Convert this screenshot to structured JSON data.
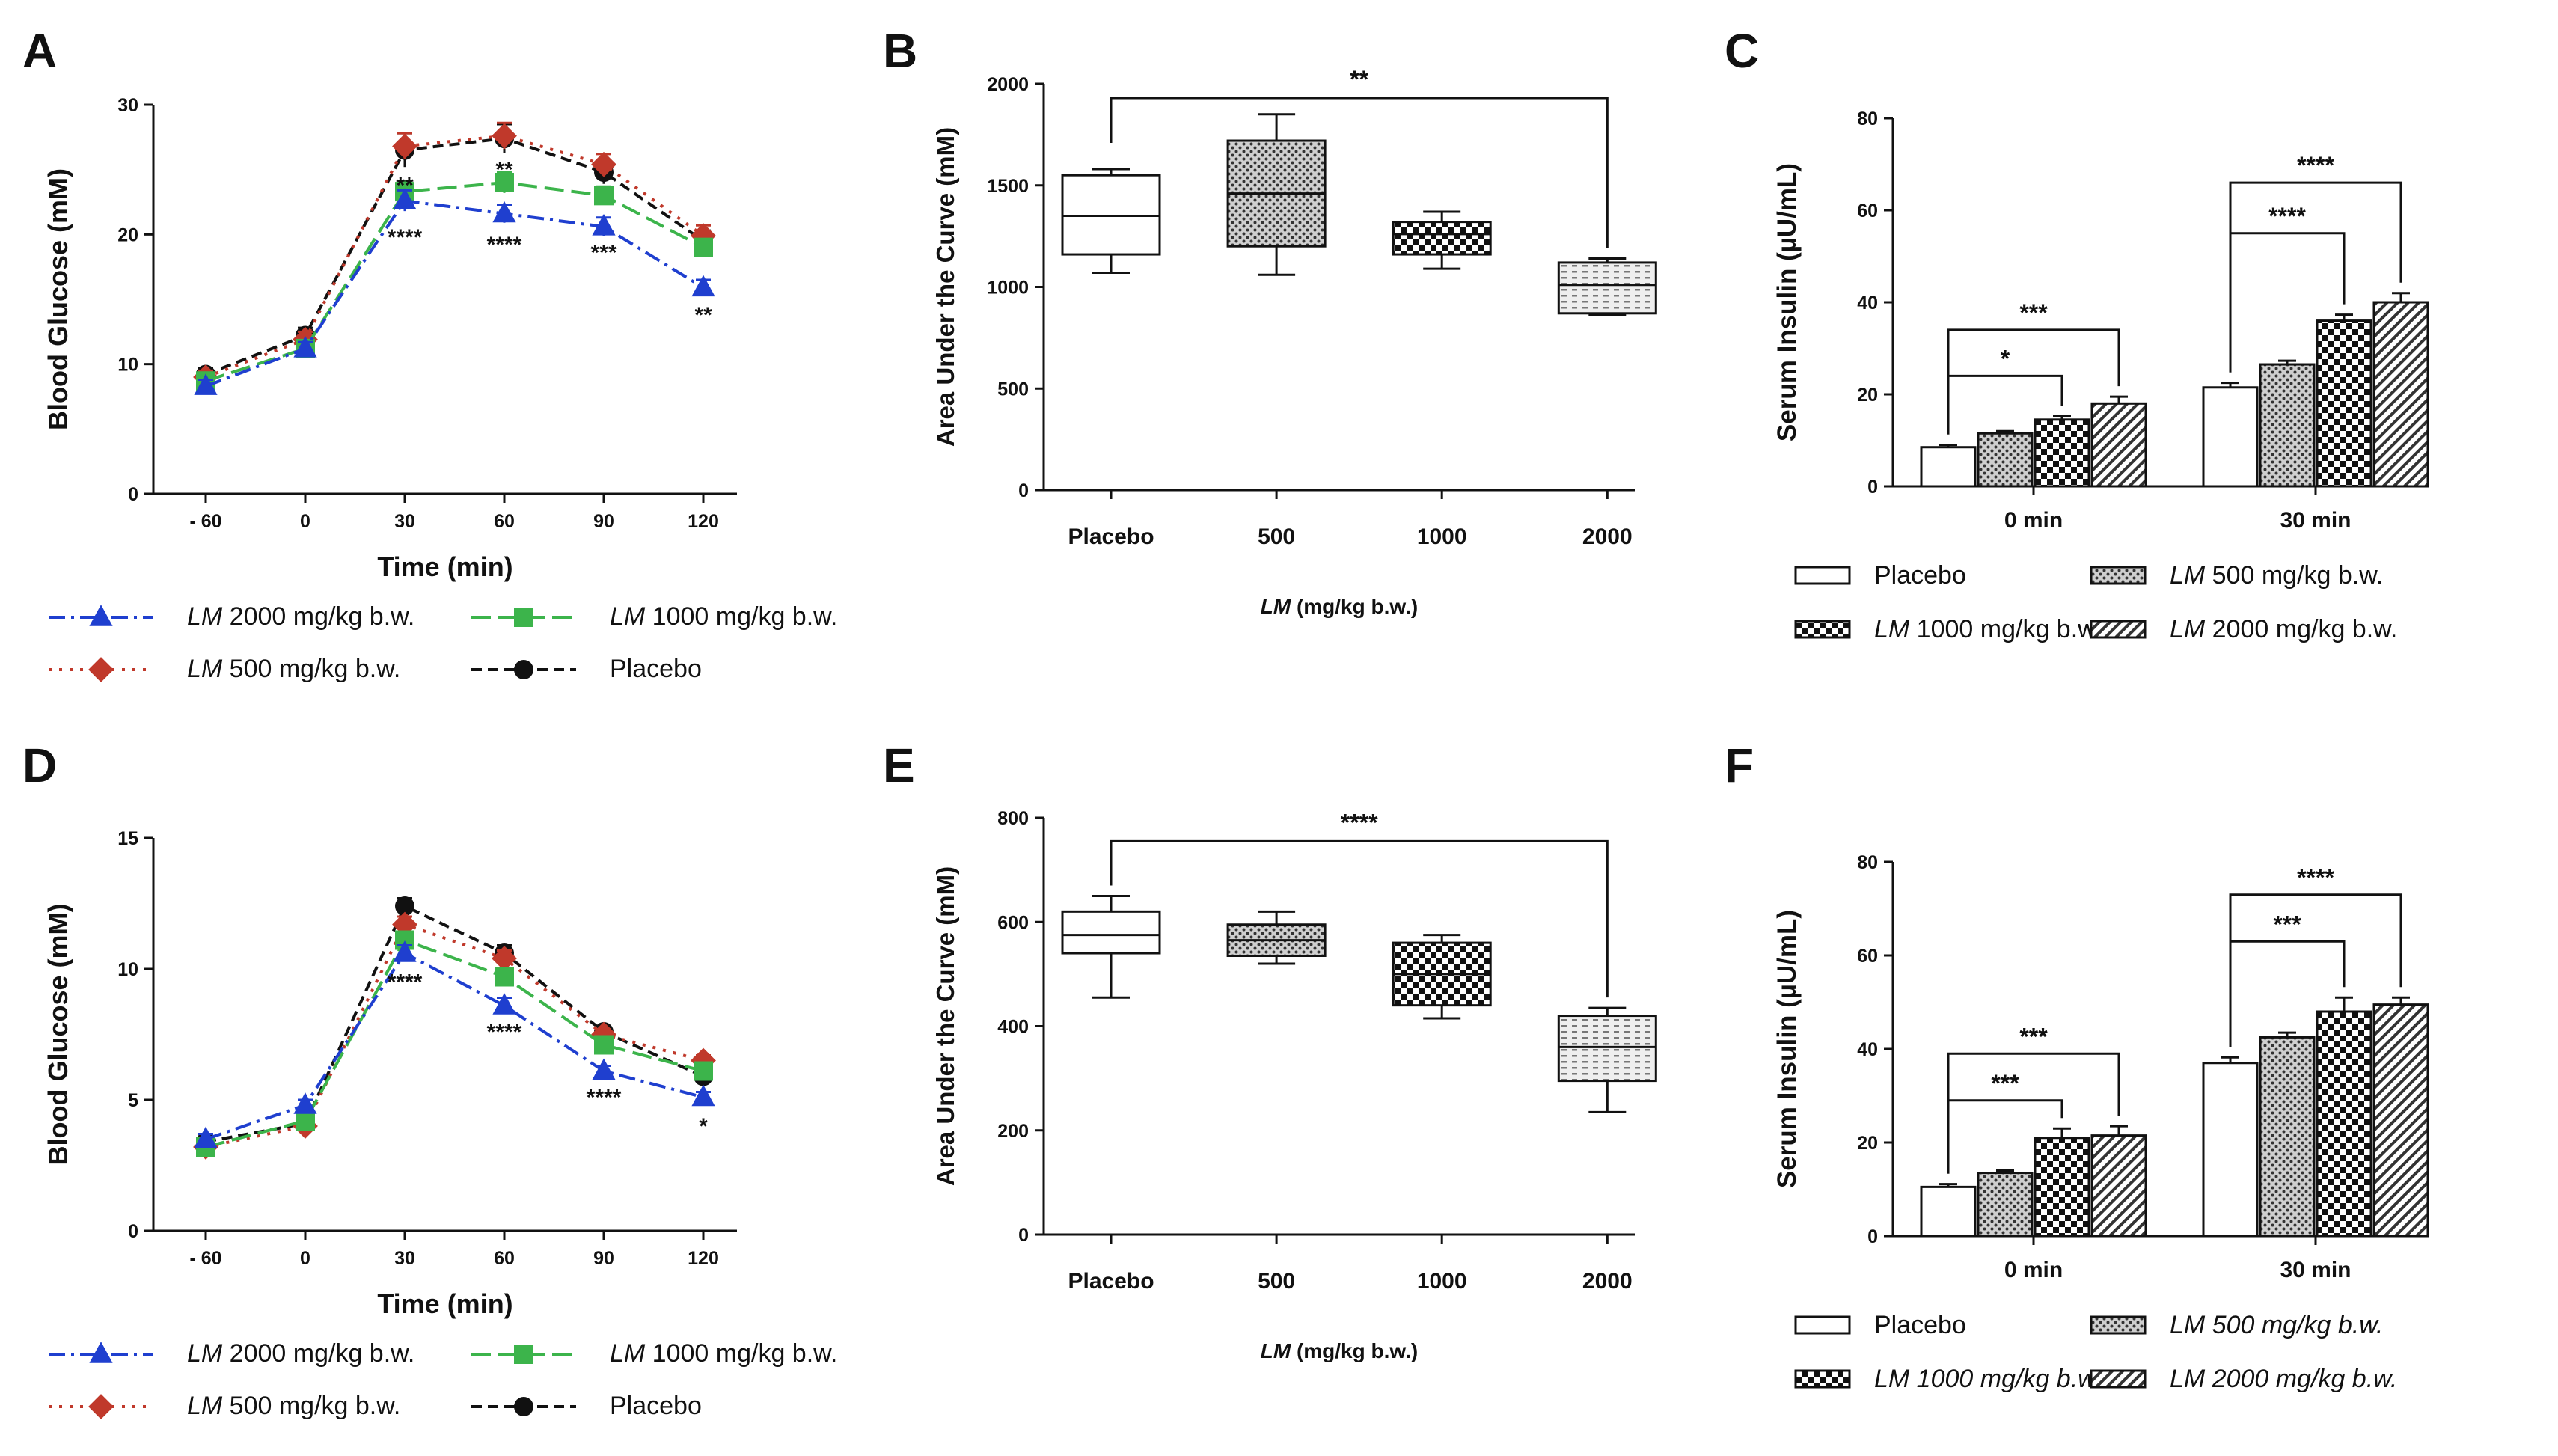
{
  "chart_data": [
    {
      "id": "A",
      "panel_label": "A",
      "type": "line",
      "xlabel": "Time (min)",
      "ylabel": "Blood Glucose (mM)",
      "categories": [
        "- 60",
        "0",
        "30",
        "60",
        "90",
        "120"
      ],
      "x": [
        -60,
        0,
        30,
        60,
        90,
        120
      ],
      "ylim": [
        0,
        30
      ],
      "yticks": [
        "0",
        "10",
        "20",
        "30"
      ],
      "series": [
        {
          "name": "Placebo",
          "color": "#111111",
          "marker": "circle",
          "values": [
            9.2,
            12.2,
            26.5,
            27.4,
            24.8,
            19.5
          ],
          "err": [
            0.5,
            0.6,
            1.3,
            1.1,
            0.9,
            0.8
          ]
        },
        {
          "name": "500 mg/kg b.w.",
          "color": "#c0392b",
          "marker": "diamond",
          "values": [
            9.0,
            11.9,
            26.8,
            27.6,
            25.4,
            19.9
          ],
          "err": [
            0.5,
            0.6,
            1.0,
            1.0,
            0.8,
            0.8
          ]
        },
        {
          "name": "1000 mg/kg b.w.",
          "color": "#3cb44b",
          "marker": "square",
          "values": [
            8.7,
            11.2,
            23.3,
            24.0,
            23.0,
            19.0
          ],
          "err": [
            0.4,
            0.5,
            0.8,
            0.8,
            0.7,
            0.6
          ]
        },
        {
          "name": "2000 mg/kg b.w.",
          "color": "#1f3fcf",
          "marker": "triangle",
          "values": [
            8.3,
            11.2,
            22.6,
            21.6,
            20.6,
            15.9
          ],
          "err": [
            0.5,
            0.5,
            0.8,
            0.7,
            0.7,
            0.6
          ]
        }
      ],
      "annotations": [
        {
          "x": 30,
          "y": 23.8,
          "text": "**"
        },
        {
          "x": 30,
          "y": 19.8,
          "text": "****"
        },
        {
          "x": 60,
          "y": 25.0,
          "text": "**"
        },
        {
          "x": 60,
          "y": 19.2,
          "text": "****"
        },
        {
          "x": 90,
          "y": 18.6,
          "text": "***"
        },
        {
          "x": 120,
          "y": 13.8,
          "text": "**"
        }
      ],
      "legend": {
        "prefix": "LM",
        "order": [
          "2000 mg/kg b.w.",
          "1000 mg/kg b.w.",
          "500 mg/kg b.w.",
          "Placebo"
        ]
      }
    },
    {
      "id": "B",
      "panel_label": "B",
      "type": "box",
      "xlabel": "(mg/kg b.w.)",
      "xlabel_italic": "LM",
      "ylabel": "Area Under the Curve (mM)",
      "categories": [
        "Placebo",
        "500",
        "1000",
        "2000"
      ],
      "ylim": [
        0,
        2000
      ],
      "yticks": [
        "0",
        "500",
        "1000",
        "1500",
        "2000"
      ],
      "boxes": [
        {
          "min": 1070,
          "q1": 1160,
          "median": 1350,
          "q3": 1550,
          "max": 1580,
          "fill": "plain"
        },
        {
          "min": 1060,
          "q1": 1200,
          "median": 1460,
          "q3": 1720,
          "max": 1850,
          "fill": "dots"
        },
        {
          "min": 1090,
          "q1": 1160,
          "median": 1260,
          "q3": 1320,
          "max": 1370,
          "fill": "checks"
        },
        {
          "min": 860,
          "q1": 870,
          "median": 1010,
          "q3": 1120,
          "max": 1140,
          "fill": "dash"
        }
      ],
      "significance": [
        {
          "from": 0,
          "to": 3,
          "y": 1930,
          "text": "**"
        }
      ]
    },
    {
      "id": "C",
      "panel_label": "C",
      "type": "bar",
      "xlabel": "",
      "ylabel": "Serum Insulin (µU/mL)",
      "groups": [
        "0 min",
        "30 min"
      ],
      "ylim": [
        0,
        80
      ],
      "yticks": [
        "0",
        "20",
        "40",
        "60",
        "80"
      ],
      "series": [
        {
          "name": "Placebo",
          "italic": "",
          "fill": "plain",
          "values": [
            8.5,
            21.5
          ],
          "err": [
            0.5,
            1.0
          ]
        },
        {
          "name": "500 mg/kg b.w.",
          "italic": "LM",
          "fill": "dots",
          "values": [
            11.5,
            26.5
          ],
          "err": [
            0.5,
            0.8
          ]
        },
        {
          "name": "1000 mg/kg b.w.",
          "italic": "LM",
          "fill": "checks",
          "values": [
            14.5,
            36.0
          ],
          "err": [
            0.7,
            1.3
          ]
        },
        {
          "name": "2000 mg/kg b.w.",
          "italic": "LM",
          "fill": "hatch",
          "values": [
            18.0,
            40.0
          ],
          "err": [
            1.5,
            2.0
          ]
        }
      ],
      "significance": [
        {
          "group": 0,
          "from": 0,
          "to": 2,
          "y": 24,
          "text": "*"
        },
        {
          "group": 0,
          "from": 0,
          "to": 3,
          "y": 34,
          "text": "***"
        },
        {
          "group": 1,
          "from": 0,
          "to": 2,
          "y": 55,
          "text": "****"
        },
        {
          "group": 1,
          "from": 0,
          "to": 3,
          "y": 66,
          "text": "****"
        }
      ],
      "legend_order": [
        0,
        1,
        2,
        3
      ]
    },
    {
      "id": "D",
      "panel_label": "D",
      "type": "line",
      "xlabel": "Time (min)",
      "ylabel": "Blood Glucose (mM)",
      "categories": [
        "- 60",
        "0",
        "30",
        "60",
        "90",
        "120"
      ],
      "x": [
        -60,
        0,
        30,
        60,
        90,
        120
      ],
      "ylim": [
        0,
        15
      ],
      "yticks": [
        "0",
        "5",
        "10",
        "15"
      ],
      "series": [
        {
          "name": "Placebo",
          "color": "#111111",
          "marker": "circle",
          "values": [
            3.4,
            4.1,
            12.4,
            10.6,
            7.6,
            5.9
          ],
          "err": [
            0.2,
            0.2,
            0.3,
            0.3,
            0.2,
            0.2
          ]
        },
        {
          "name": "500 mg/kg b.w.",
          "color": "#c0392b",
          "marker": "diamond",
          "values": [
            3.2,
            4.0,
            11.7,
            10.4,
            7.5,
            6.5
          ],
          "err": [
            0.2,
            0.2,
            0.3,
            0.3,
            0.2,
            0.2
          ]
        },
        {
          "name": "1000 mg/kg b.w.",
          "color": "#3cb44b",
          "marker": "square",
          "values": [
            3.2,
            4.2,
            11.1,
            9.7,
            7.1,
            6.1
          ],
          "err": [
            0.2,
            0.2,
            0.3,
            0.3,
            0.2,
            0.2
          ]
        },
        {
          "name": "2000 mg/kg b.w.",
          "color": "#1f3fcf",
          "marker": "triangle",
          "values": [
            3.5,
            4.8,
            10.6,
            8.6,
            6.1,
            5.1
          ],
          "err": [
            0.2,
            0.2,
            0.3,
            0.3,
            0.2,
            0.2
          ]
        }
      ],
      "annotations": [
        {
          "x": 30,
          "y": 9.5,
          "text": "****"
        },
        {
          "x": 60,
          "y": 7.6,
          "text": "****"
        },
        {
          "x": 90,
          "y": 5.1,
          "text": "****"
        },
        {
          "x": 120,
          "y": 4.0,
          "text": "*"
        }
      ],
      "legend": {
        "prefix": "LM",
        "order": [
          "2000 mg/kg b.w.",
          "1000 mg/kg b.w.",
          "500 mg/kg b.w.",
          "Placebo"
        ]
      }
    },
    {
      "id": "E",
      "panel_label": "E",
      "type": "box",
      "xlabel": "(mg/kg b.w.)",
      "xlabel_italic": "LM",
      "ylabel": "Area Under the Curve  (mM)",
      "categories": [
        "Placebo",
        "500",
        "1000",
        "2000"
      ],
      "ylim": [
        0,
        800
      ],
      "yticks": [
        "0",
        "200",
        "400",
        "600",
        "800"
      ],
      "boxes": [
        {
          "min": 455,
          "q1": 540,
          "median": 575,
          "q3": 620,
          "max": 650,
          "fill": "plain"
        },
        {
          "min": 520,
          "q1": 535,
          "median": 565,
          "q3": 595,
          "max": 620,
          "fill": "dots"
        },
        {
          "min": 415,
          "q1": 440,
          "median": 500,
          "q3": 560,
          "max": 575,
          "fill": "checks"
        },
        {
          "min": 235,
          "q1": 295,
          "median": 360,
          "q3": 420,
          "max": 435,
          "fill": "dash"
        }
      ],
      "significance": [
        {
          "from": 0,
          "to": 3,
          "y": 755,
          "text": "****"
        }
      ]
    },
    {
      "id": "F",
      "panel_label": "F",
      "type": "bar",
      "xlabel": "",
      "ylabel": "Serum Insulin (µU/mL)",
      "groups": [
        "0 min",
        "30 min"
      ],
      "ylim": [
        0,
        80
      ],
      "yticks": [
        "0",
        "20",
        "40",
        "60",
        "80"
      ],
      "series": [
        {
          "name": "Placebo",
          "italic": "",
          "fill": "plain",
          "values": [
            10.5,
            37.0
          ],
          "err": [
            0.6,
            1.2
          ]
        },
        {
          "name": "LM 500 mg/kg b.w.",
          "italic": "",
          "fill": "dots",
          "values": [
            13.5,
            42.5
          ],
          "err": [
            0.5,
            1.0
          ]
        },
        {
          "name": "LM 1000 mg/kg b.w.",
          "italic": "",
          "fill": "checks",
          "values": [
            21.0,
            48.0
          ],
          "err": [
            2.0,
            3.0
          ]
        },
        {
          "name": "LM 2000 mg/kg b.w.",
          "italic": "",
          "fill": "hatch",
          "values": [
            21.5,
            49.5
          ],
          "err": [
            2.0,
            1.5
          ]
        }
      ],
      "significance": [
        {
          "group": 0,
          "from": 0,
          "to": 2,
          "y": 29,
          "text": "***"
        },
        {
          "group": 0,
          "from": 0,
          "to": 3,
          "y": 39,
          "text": "***"
        },
        {
          "group": 1,
          "from": 0,
          "to": 2,
          "y": 63,
          "text": "***"
        },
        {
          "group": 1,
          "from": 0,
          "to": 3,
          "y": 73,
          "text": "****"
        }
      ],
      "legend_order": [
        0,
        1,
        2,
        3
      ],
      "legend_italic_all": true
    }
  ]
}
